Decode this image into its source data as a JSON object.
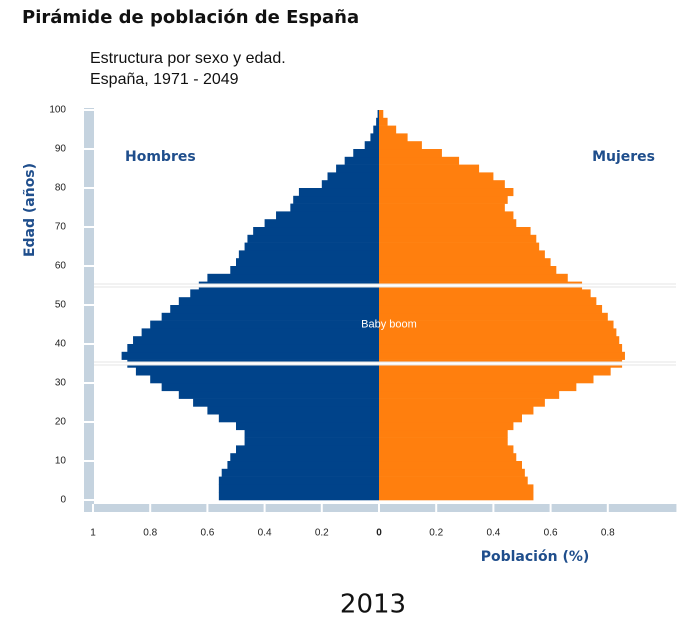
{
  "chart_data": {
    "type": "pyramid",
    "title": "Pirámide de población de España",
    "subtitle": [
      "Estructura por sexo y edad.",
      "España, 1971 - 2049"
    ],
    "ylabel": "Edad (años)",
    "xlabel": "Población (%)",
    "footer": "2013",
    "y": [
      0,
      2,
      4,
      6,
      8,
      10,
      12,
      14,
      16,
      18,
      20,
      22,
      24,
      26,
      28,
      30,
      32,
      34,
      36,
      38,
      40,
      42,
      44,
      46,
      48,
      50,
      52,
      54,
      56,
      58,
      60,
      62,
      64,
      66,
      68,
      70,
      72,
      74,
      76,
      78,
      80,
      82,
      84,
      86,
      88,
      90,
      92,
      94,
      96,
      98,
      100
    ],
    "series": [
      {
        "name": "Hombres",
        "color": "#00438a",
        "values": [
          0.56,
          0.56,
          0.56,
          0.55,
          0.53,
          0.52,
          0.5,
          0.47,
          0.47,
          0.5,
          0.56,
          0.6,
          0.65,
          0.7,
          0.76,
          0.8,
          0.85,
          0.88,
          0.9,
          0.88,
          0.86,
          0.83,
          0.8,
          0.76,
          0.73,
          0.7,
          0.66,
          0.63,
          0.6,
          0.52,
          0.5,
          0.49,
          0.47,
          0.46,
          0.44,
          0.4,
          0.36,
          0.31,
          0.3,
          0.28,
          0.2,
          0.18,
          0.15,
          0.12,
          0.09,
          0.05,
          0.03,
          0.02,
          0.01,
          0.005,
          0.003
        ]
      },
      {
        "name": "Mujeres",
        "color": "#ff7f0e",
        "values": [
          0.54,
          0.54,
          0.52,
          0.51,
          0.5,
          0.48,
          0.47,
          0.45,
          0.45,
          0.47,
          0.5,
          0.54,
          0.58,
          0.63,
          0.69,
          0.75,
          0.81,
          0.85,
          0.86,
          0.85,
          0.84,
          0.83,
          0.82,
          0.8,
          0.78,
          0.76,
          0.74,
          0.71,
          0.66,
          0.62,
          0.6,
          0.58,
          0.56,
          0.55,
          0.53,
          0.48,
          0.47,
          0.44,
          0.45,
          0.47,
          0.44,
          0.4,
          0.35,
          0.28,
          0.22,
          0.15,
          0.1,
          0.06,
          0.03,
          0.015,
          0.005
        ]
      }
    ],
    "xlim": [
      -1,
      1.005
    ],
    "xticks": [
      {
        "value": -1,
        "label": "1"
      },
      {
        "value": -0.8,
        "label": "0.8"
      },
      {
        "value": -0.6,
        "label": "0.6"
      },
      {
        "value": -0.4,
        "label": "0.4"
      },
      {
        "value": -0.2,
        "label": "0.2"
      },
      0,
      0.2,
      0.4,
      0.6,
      0.8
    ],
    "ylim": [
      0,
      100
    ],
    "yticks": [
      0,
      10,
      20,
      30,
      40,
      50,
      60,
      70,
      80,
      90,
      100
    ],
    "annotations": [
      {
        "text": "Baby boom",
        "y": [
          35,
          55
        ]
      }
    ]
  }
}
